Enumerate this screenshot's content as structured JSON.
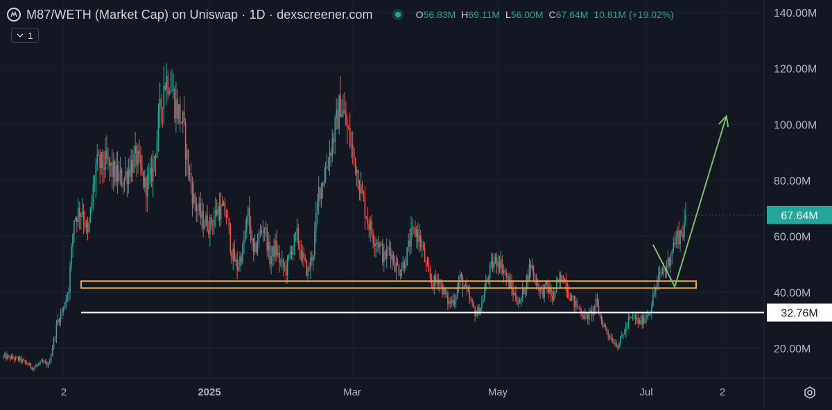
{
  "header": {
    "title": "M87/WETH (Market Cap) on Uniswap · 1D · dexscreener.com",
    "open_label": "O",
    "open": "56.83M",
    "high_label": "H",
    "high": "69.11M",
    "low_label": "L",
    "low": "56.00M",
    "close_label": "C",
    "close": "67.64M",
    "change": "10.81M (+19.02%)"
  },
  "indicator": {
    "count": "1"
  },
  "colors": {
    "background": "#131722",
    "up": "#26a69a",
    "down": "#ef5350",
    "support_zone": "#f5a23a",
    "support_line": "#ffffff",
    "arrow": "#7cc26b",
    "price_label_bg": "#26a69a"
  },
  "chart_data": {
    "type": "candlestick",
    "y_unit": "market cap (USD, millions)",
    "ylim": [
      10,
      143
    ],
    "y_ticks": [
      {
        "value": 20,
        "label": "20.00M"
      },
      {
        "value": 40,
        "label": "40.00M"
      },
      {
        "value": 60,
        "label": "60.00M"
      },
      {
        "value": 80,
        "label": "80.00M"
      },
      {
        "value": 100,
        "label": "100.00M"
      },
      {
        "value": 120,
        "label": "120.00M"
      },
      {
        "value": 140,
        "label": "140.00M"
      }
    ],
    "x_ticks": [
      "2",
      "2025",
      "Mar",
      "May",
      "Jul",
      "2"
    ],
    "last_price": {
      "value": 67.64,
      "label": "67.64M"
    },
    "support_line": {
      "value": 32.76,
      "label": "32.76M"
    },
    "support_zone": [
      41.5,
      44.0
    ],
    "waypoints": [
      [
        0,
        17
      ],
      [
        12,
        16
      ],
      [
        22,
        13
      ],
      [
        28,
        15
      ],
      [
        33,
        14
      ],
      [
        35,
        18
      ],
      [
        40,
        30
      ],
      [
        44,
        34
      ],
      [
        48,
        42
      ],
      [
        52,
        67
      ],
      [
        58,
        70
      ],
      [
        62,
        60
      ],
      [
        68,
        85
      ],
      [
        76,
        86
      ],
      [
        82,
        82
      ],
      [
        88,
        80
      ],
      [
        94,
        86
      ],
      [
        98,
        88
      ],
      [
        104,
        78
      ],
      [
        108,
        80
      ],
      [
        112,
        92
      ],
      [
        118,
        115
      ],
      [
        122,
        117
      ],
      [
        126,
        108
      ],
      [
        132,
        100
      ],
      [
        136,
        84
      ],
      [
        140,
        73
      ],
      [
        146,
        66
      ],
      [
        152,
        64
      ],
      [
        158,
        70
      ],
      [
        164,
        68
      ],
      [
        168,
        54
      ],
      [
        172,
        49
      ],
      [
        176,
        55
      ],
      [
        180,
        68
      ],
      [
        184,
        53
      ],
      [
        188,
        60
      ],
      [
        192,
        64
      ],
      [
        196,
        52
      ],
      [
        200,
        56
      ],
      [
        204,
        50
      ],
      [
        208,
        48
      ],
      [
        212,
        56
      ],
      [
        216,
        60
      ],
      [
        220,
        52
      ],
      [
        224,
        47
      ],
      [
        228,
        55
      ],
      [
        232,
        76
      ],
      [
        236,
        82
      ],
      [
        240,
        90
      ],
      [
        244,
        98
      ],
      [
        248,
        108
      ],
      [
        252,
        100
      ],
      [
        256,
        92
      ],
      [
        260,
        84
      ],
      [
        264,
        74
      ],
      [
        268,
        66
      ],
      [
        272,
        60
      ],
      [
        276,
        58
      ],
      [
        280,
        52
      ],
      [
        284,
        56
      ],
      [
        288,
        50
      ],
      [
        292,
        48
      ],
      [
        296,
        52
      ],
      [
        300,
        60
      ],
      [
        304,
        62
      ],
      [
        308,
        56
      ],
      [
        312,
        47
      ],
      [
        316,
        43
      ],
      [
        320,
        45
      ],
      [
        324,
        40
      ],
      [
        328,
        36
      ],
      [
        332,
        38
      ],
      [
        336,
        45
      ],
      [
        340,
        41
      ],
      [
        344,
        36
      ],
      [
        348,
        32
      ],
      [
        352,
        36
      ],
      [
        356,
        45
      ],
      [
        360,
        50
      ],
      [
        364,
        52
      ],
      [
        368,
        48
      ],
      [
        372,
        43
      ],
      [
        376,
        39
      ],
      [
        380,
        36
      ],
      [
        384,
        43
      ],
      [
        388,
        50
      ],
      [
        392,
        44
      ],
      [
        396,
        40
      ],
      [
        400,
        42
      ],
      [
        404,
        38
      ],
      [
        408,
        43
      ],
      [
        412,
        46
      ],
      [
        416,
        40
      ],
      [
        420,
        36
      ],
      [
        424,
        34
      ],
      [
        428,
        31
      ],
      [
        432,
        32
      ],
      [
        436,
        36
      ],
      [
        440,
        30
      ],
      [
        444,
        26
      ],
      [
        448,
        23
      ],
      [
        452,
        21
      ],
      [
        456,
        25
      ],
      [
        460,
        30
      ],
      [
        464,
        31
      ],
      [
        468,
        29
      ],
      [
        472,
        31
      ],
      [
        476,
        34
      ],
      [
        480,
        42
      ],
      [
        484,
        47
      ],
      [
        488,
        49
      ],
      [
        492,
        56
      ],
      [
        496,
        60
      ],
      [
        500,
        62
      ],
      [
        502,
        67.64
      ]
    ],
    "forecast_arrow": [
      [
        478,
        57
      ],
      [
        494,
        42
      ],
      [
        532,
        103
      ]
    ]
  }
}
